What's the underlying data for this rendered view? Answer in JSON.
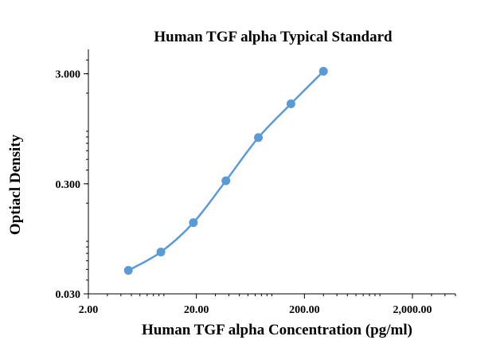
{
  "chart_data": {
    "type": "line",
    "title": "Human TGF alpha Typical Standard",
    "xlabel": "Human TGF alpha Concentration (pg/ml)",
    "ylabel": "Optiacl  Density",
    "x_scale": "log",
    "y_scale": "log",
    "xlim": [
      2,
      5000
    ],
    "ylim": [
      0.03,
      5
    ],
    "x_ticks": [
      {
        "value": 2,
        "label": "2.00"
      },
      {
        "value": 20,
        "label": "20.00"
      },
      {
        "value": 200,
        "label": "200.00"
      },
      {
        "value": 2000,
        "label": "2,000.00"
      }
    ],
    "y_ticks": [
      {
        "value": 0.03,
        "label": "0.030"
      },
      {
        "value": 0.3,
        "label": "0.300"
      },
      {
        "value": 3,
        "label": "3.000"
      }
    ],
    "grid": false,
    "legend": "none",
    "smooth": true,
    "color": "#5b9bd5",
    "series": [
      {
        "x": [
          4.69,
          9.38,
          18.75,
          37.5,
          75,
          150,
          300
        ],
        "y": [
          0.049,
          0.072,
          0.133,
          0.32,
          0.79,
          1.6,
          3.16
        ]
      }
    ]
  }
}
